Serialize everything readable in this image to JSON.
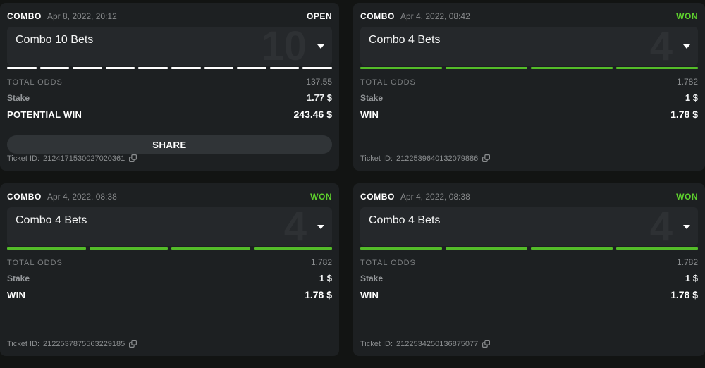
{
  "cards": [
    {
      "type_label": "COMBO",
      "date": "Apr 8, 2022, 20:12",
      "status": "OPEN",
      "status_color": "#ffffff",
      "title": "Combo 10 Bets",
      "bet_count": "10",
      "segments": 10,
      "segment_color": "#ffffff",
      "total_odds_label": "TOTAL ODDS",
      "total_odds": "137.55",
      "stake_label": "Stake",
      "stake": "1.77 $",
      "win_label": "POTENTIAL WIN",
      "win": "243.46 $",
      "share_label": "SHARE",
      "ticket_label": "Ticket ID:",
      "ticket_id": "2124171530027020361",
      "icons": {
        "expand": "chevron-down-icon",
        "copy": "copy-icon"
      }
    },
    {
      "type_label": "COMBO",
      "date": "Apr 4, 2022, 08:42",
      "status": "WON",
      "status_color": "#5ed12d",
      "title": "Combo 4 Bets",
      "bet_count": "4",
      "segments": 4,
      "segment_color": "#54bc29",
      "total_odds_label": "TOTAL ODDS",
      "total_odds": "1.782",
      "stake_label": "Stake",
      "stake": "1 $",
      "win_label": "WIN",
      "win": "1.78 $",
      "ticket_label": "Ticket ID:",
      "ticket_id": "2122539640132079886",
      "icons": {
        "expand": "chevron-down-icon",
        "copy": "copy-icon"
      }
    },
    {
      "type_label": "COMBO",
      "date": "Apr 4, 2022, 08:38",
      "status": "WON",
      "status_color": "#5ed12d",
      "title": "Combo 4 Bets",
      "bet_count": "4",
      "segments": 4,
      "segment_color": "#54bc29",
      "total_odds_label": "TOTAL ODDS",
      "total_odds": "1.782",
      "stake_label": "Stake",
      "stake": "1 $",
      "win_label": "WIN",
      "win": "1.78 $",
      "ticket_label": "Ticket ID:",
      "ticket_id": "2122537875563229185",
      "icons": {
        "expand": "chevron-down-icon",
        "copy": "copy-icon"
      }
    },
    {
      "type_label": "COMBO",
      "date": "Apr 4, 2022, 08:38",
      "status": "WON",
      "status_color": "#5ed12d",
      "title": "Combo 4 Bets",
      "bet_count": "4",
      "segments": 4,
      "segment_color": "#54bc29",
      "total_odds_label": "TOTAL ODDS",
      "total_odds": "1.782",
      "stake_label": "Stake",
      "stake": "1 $",
      "win_label": "WIN",
      "win": "1.78 $",
      "ticket_label": "Ticket ID:",
      "ticket_id": "2122534250136875077",
      "icons": {
        "expand": "chevron-down-icon",
        "copy": "copy-icon"
      }
    }
  ]
}
